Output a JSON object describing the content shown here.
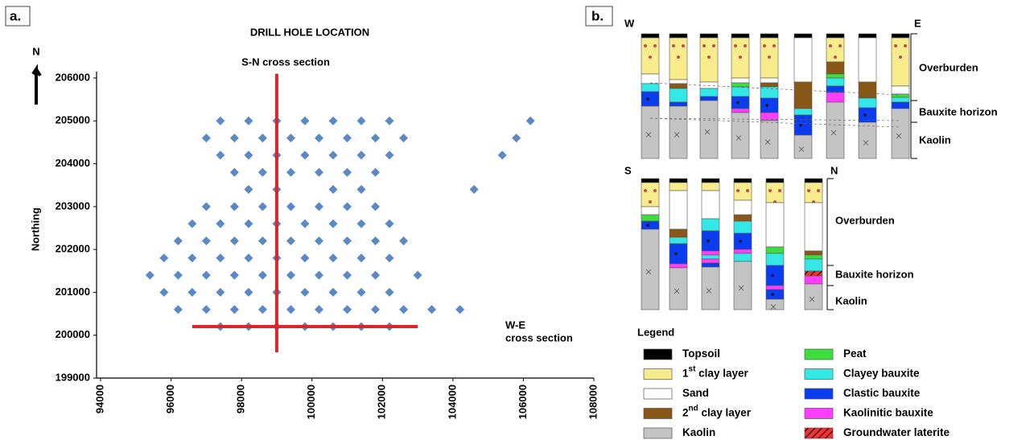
{
  "chart_data": {
    "type": "scatter",
    "title": "DRILL HOLE LOCATION",
    "y_label": "Northing",
    "north_label": "N",
    "color": "#5a8ac6",
    "x": [
      97400,
      98200,
      99000,
      99800,
      100600,
      101400,
      102200,
      106200,
      97000,
      97800,
      98600,
      99400,
      100200,
      101000,
      101800,
      102600,
      105800,
      97400,
      98200,
      99000,
      99800,
      100600,
      101400,
      102200,
      105400,
      97800,
      98600,
      99400,
      100200,
      101000,
      101800,
      98200,
      99000,
      100600,
      101400,
      104600,
      97000,
      97800,
      98600,
      99400,
      100200,
      101000,
      101800,
      96600,
      97400,
      98200,
      99000,
      99800,
      100600,
      101400,
      102200,
      96200,
      97000,
      97800,
      98600,
      99400,
      100200,
      101000,
      101800,
      102600,
      95800,
      96600,
      97400,
      98200,
      99000,
      99800,
      100600,
      101400,
      102200,
      95400,
      96200,
      97000,
      97800,
      98600,
      99400,
      100200,
      101000,
      101800,
      103000,
      95800,
      96600,
      97400,
      98200,
      99000,
      99800,
      100600,
      101400,
      102200,
      96200,
      97000,
      97800,
      98600,
      99400,
      100200,
      101000,
      101800,
      102600,
      103400,
      104200,
      97400,
      98200,
      99000,
      99800,
      100600,
      101400,
      102200
    ],
    "y": [
      205000,
      205000,
      205000,
      205000,
      205000,
      205000,
      205000,
      205000,
      204600,
      204600,
      204600,
      204600,
      204600,
      204600,
      204600,
      204600,
      204600,
      204200,
      204200,
      204200,
      204200,
      204200,
      204200,
      204200,
      204200,
      203800,
      203800,
      203800,
      203800,
      203800,
      203800,
      203400,
      203400,
      203400,
      203400,
      203400,
      203000,
      203000,
      203000,
      203000,
      203000,
      203000,
      203000,
      202600,
      202600,
      202600,
      202600,
      202600,
      202600,
      202600,
      202600,
      202200,
      202200,
      202200,
      202200,
      202200,
      202200,
      202200,
      202200,
      202200,
      201800,
      201800,
      201800,
      201800,
      201800,
      201800,
      201800,
      201800,
      201800,
      201400,
      201400,
      201400,
      201400,
      201400,
      201400,
      201400,
      201400,
      201400,
      201400,
      201000,
      201000,
      201000,
      201000,
      201000,
      201000,
      201000,
      201000,
      201000,
      200600,
      200600,
      200600,
      200600,
      200600,
      200600,
      200600,
      200600,
      200600,
      200600,
      200600,
      200200,
      200200,
      200200,
      200200,
      200200,
      200200,
      200200
    ],
    "xlim": [
      94000,
      108000
    ],
    "xticks": [
      94000,
      96000,
      98000,
      100000,
      102000,
      104000,
      106000,
      108000
    ],
    "ylim": [
      199000,
      206000
    ],
    "yticks": [
      199000,
      200000,
      201000,
      202000,
      203000,
      204000,
      205000,
      206000
    ],
    "cross_sections": [
      {
        "label_lines": [
          "S-N cross section"
        ],
        "color": "#d9262c",
        "x": [
          99000,
          99000
        ],
        "y": [
          199600,
          206100
        ]
      },
      {
        "label_lines": [
          "W-E",
          "cross section"
        ],
        "color": "#d9262c",
        "x": [
          96600,
          103000
        ],
        "y": [
          200200,
          200200
        ]
      }
    ]
  },
  "panel_a_label": "a.",
  "panel_b": {
    "label": "b.",
    "we": {
      "left": "W",
      "right": "E",
      "zones": [
        "Overburden",
        "Bauxite horizon",
        "Kaolin"
      ]
    },
    "sn": {
      "left": "S",
      "right": "N",
      "zones": [
        "Overburden",
        "Bauxite horizon",
        "Kaolin"
      ]
    },
    "legend": {
      "title": "Legend",
      "items": [
        {
          "label_parts": [
            "Topsoil"
          ],
          "color": "#000000"
        },
        {
          "label_parts": [
            "1",
            "st",
            " clay layer"
          ],
          "color": "#f8ec8c"
        },
        {
          "label_parts": [
            "Sand"
          ],
          "color": "#ffffff"
        },
        {
          "label_parts": [
            "2",
            "nd",
            " clay layer"
          ],
          "color": "#8b5716"
        },
        {
          "label_parts": [
            "Kaolin"
          ],
          "color": "#c4c4c4"
        },
        {
          "label_parts": [
            "Peat"
          ],
          "color": "#3ede3e"
        },
        {
          "label_parts": [
            "Clayey bauxite"
          ],
          "color": "#34e8e8"
        },
        {
          "label_parts": [
            "Clastic bauxite"
          ],
          "color": "#0b3df0"
        },
        {
          "label_parts": [
            "Kaolinitic bauxite"
          ],
          "color": "#ff3dff"
        },
        {
          "label_parts": [
            "Groundwater laterite"
          ],
          "color": "#ee3333"
        }
      ]
    }
  }
}
